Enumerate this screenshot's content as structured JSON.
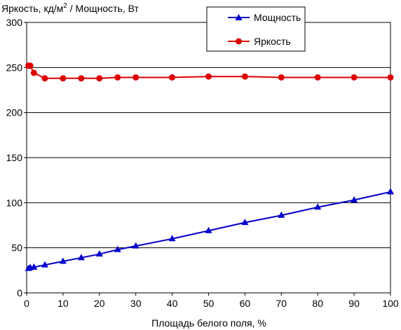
{
  "chart_data": {
    "type": "line",
    "title": "",
    "ylabel_main": "Яркость, кд/м",
    "ylabel_sup": "2",
    "ylabel_rest": " / Мощность, Вт",
    "xlabel": "Площадь белого поля, %",
    "xlim": [
      0,
      100
    ],
    "ylim": [
      0,
      300
    ],
    "xticks": [
      "0",
      "10",
      "20",
      "30",
      "40",
      "50",
      "60",
      "70",
      "80",
      "90",
      "100"
    ],
    "yticks": [
      "0",
      "50",
      "100",
      "150",
      "200",
      "250",
      "300"
    ],
    "grid": "horizontal",
    "legend_position": "top-center",
    "series": [
      {
        "name": "Мощность",
        "color": "#0000cc",
        "marker": "triangle",
        "x": [
          0.5,
          1,
          2,
          5,
          10,
          15,
          20,
          25,
          30,
          40,
          50,
          60,
          70,
          80,
          90,
          100
        ],
        "y": [
          27,
          28,
          28.5,
          31,
          35,
          39,
          43,
          48,
          52,
          60,
          69,
          78,
          86,
          95,
          103,
          112
        ]
      },
      {
        "name": "Яркость",
        "color": "#dd0000",
        "marker": "circle",
        "x": [
          0.5,
          1,
          2,
          5,
          10,
          15,
          20,
          25,
          30,
          40,
          50,
          60,
          70,
          80,
          90,
          100
        ],
        "y": [
          252,
          252,
          244,
          238,
          238,
          238,
          238,
          239,
          239,
          239,
          240,
          240,
          239,
          239,
          239,
          239
        ]
      }
    ]
  }
}
